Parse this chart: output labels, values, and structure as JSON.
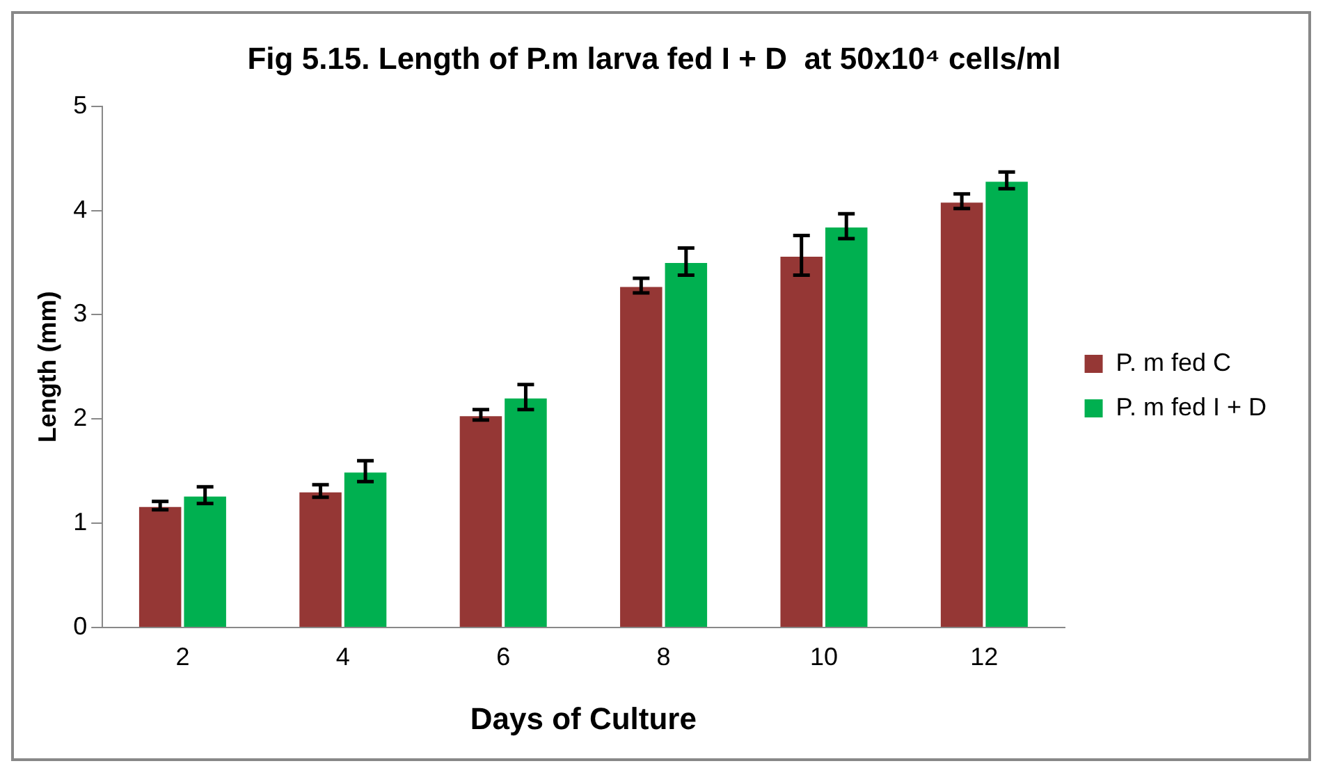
{
  "chart_data": {
    "type": "bar",
    "title": "Fig 5.15. Length of P.m larva fed I + D  at 50x10⁴ cells/ml",
    "xlabel": "Days of Culture",
    "ylabel": "Length (mm)",
    "categories": [
      "2",
      "4",
      "6",
      "8",
      "10",
      "12"
    ],
    "series": [
      {
        "name": "P. m fed C",
        "color": "#953735",
        "values": [
          1.17,
          1.31,
          2.04,
          3.28,
          3.57,
          4.09
        ],
        "errors": [
          0.04,
          0.06,
          0.05,
          0.07,
          0.19,
          0.07
        ]
      },
      {
        "name": "P. m fed I + D",
        "color": "#00b050",
        "values": [
          1.27,
          1.5,
          2.21,
          3.51,
          3.85,
          4.29
        ],
        "errors": [
          0.08,
          0.1,
          0.12,
          0.13,
          0.12,
          0.08
        ]
      }
    ],
    "ylim": [
      0,
      5
    ],
    "yticks": [
      0,
      1,
      2,
      3,
      4,
      5
    ],
    "grid": false,
    "legend": "right"
  }
}
